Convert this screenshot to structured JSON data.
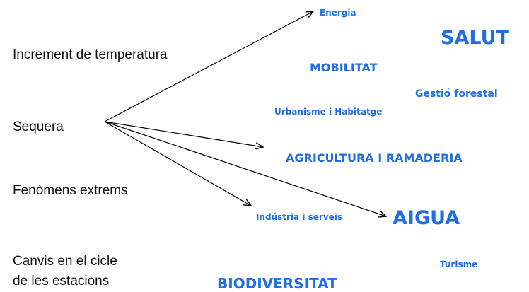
{
  "causes": [
    "Increment de temperatura",
    "Sequera",
    "Fenòmens extrems",
    "Canvis en el cicle",
    "de les estacions"
  ],
  "sectors": [
    "Energia",
    "SALUT",
    "MOBILITAT",
    "Gestió forestal",
    "Urbanisme i Habitatge",
    "AGRICULTURA I RAMADERIA",
    "Indústria i serveis",
    "AIGUA",
    "Turisme",
    "BIODIVERSITAT"
  ]
}
